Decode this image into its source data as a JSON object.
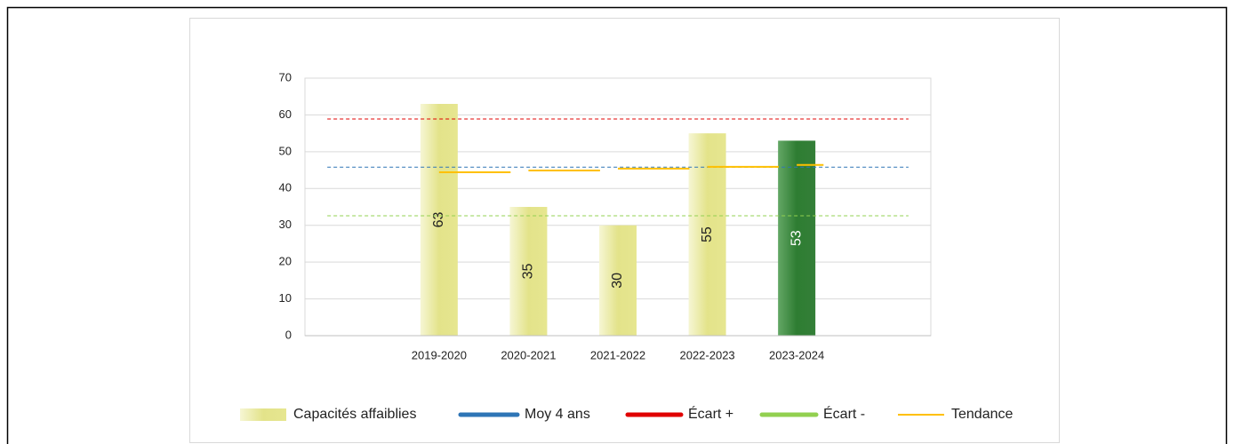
{
  "chart_data": {
    "type": "bar",
    "categories": [
      null,
      "2019-2020",
      "2020-2021",
      "2021-2022",
      "2022-2023",
      "2023-2024",
      null
    ],
    "series": [
      {
        "name": "Capacités affaiblies",
        "color": "#e3e38a",
        "highlight_color": "#2e7d32",
        "values": [
          null,
          63,
          35,
          30,
          55,
          53,
          null
        ],
        "value_labels": [
          null,
          "63",
          "35",
          "30",
          "55",
          "53",
          null
        ]
      },
      {
        "name": "Moy 4 ans",
        "color": "#2e75b6",
        "value": 45.8,
        "dashed": true
      },
      {
        "name": "Écart +",
        "color": "#e00000",
        "value": 58.9,
        "dashed": true
      },
      {
        "name": "Écart -",
        "color": "#92d050",
        "value": 32.6,
        "dashed": true
      },
      {
        "name": "Tendance",
        "color": "#ffc000",
        "values": [
          null,
          44.4,
          44.9,
          45.4,
          45.9,
          46.4,
          null
        ],
        "step": true
      }
    ],
    "ylim": [
      0,
      70
    ],
    "yticks": [
      0,
      10,
      20,
      30,
      40,
      50,
      60,
      70
    ],
    "grid": true
  }
}
